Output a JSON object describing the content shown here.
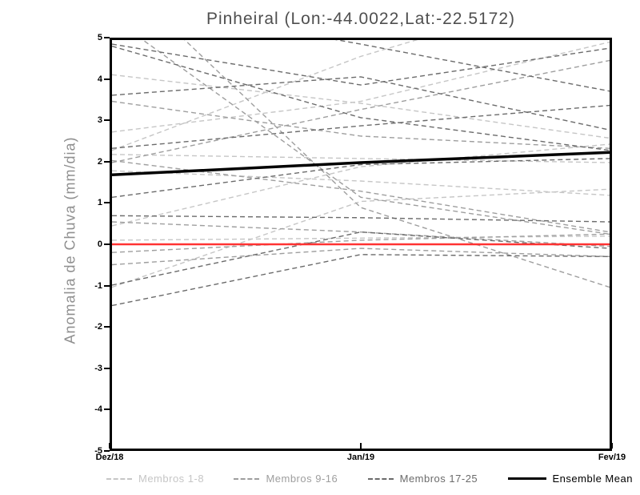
{
  "title": "Pinheiral (Lon:-44.0022,Lat:-22.5172)",
  "chart_data": {
    "type": "line",
    "x": [
      "Dez/18",
      "Jan/19",
      "Fev/19"
    ],
    "xlabel": "",
    "ylabel": "Anomalia de Chuva (mm/dia)",
    "ylim": [
      -5,
      5
    ],
    "yticks": [
      -5,
      -4,
      -3,
      -2,
      -1,
      0,
      1,
      2,
      3,
      4,
      5
    ],
    "grid": false,
    "legend_position": "bottom",
    "groups": [
      {
        "name": "Membros 1-8",
        "color": "#c6c6c6",
        "style": "dashed",
        "members": [
          [
            4.15,
            3.45,
            2.6
          ],
          [
            2.75,
            3.5,
            4.95
          ],
          [
            2.2,
            2.1,
            2.0
          ],
          [
            1.8,
            1.55,
            1.2
          ],
          [
            0.45,
            1.9,
            2.45
          ],
          [
            0.1,
            0.15,
            0.2
          ],
          [
            -1.05,
            1.05,
            1.35
          ],
          [
            2.3,
            4.6,
            6.4
          ]
        ]
      },
      {
        "name": "Membros 9-16",
        "color": "#9e9e9e",
        "style": "dashed",
        "members": [
          [
            6.7,
            0.9,
            -1.05
          ],
          [
            2.0,
            3.3,
            4.5
          ],
          [
            5.55,
            1.15,
            0.25
          ],
          [
            -0.2,
            0.1,
            0.25
          ],
          [
            -0.5,
            -0.1,
            -0.3
          ],
          [
            2.05,
            1.3,
            0.3
          ],
          [
            0.55,
            0.3,
            -0.05
          ],
          [
            3.5,
            2.65,
            2.35
          ]
        ]
      },
      {
        "name": "Membros 17-25",
        "color": "#6b6b6b",
        "style": "dashed",
        "members": [
          [
            3.65,
            4.1,
            2.8
          ],
          [
            4.9,
            3.9,
            4.8
          ],
          [
            4.85,
            3.1,
            2.3
          ],
          [
            2.35,
            2.9,
            3.4
          ],
          [
            6.0,
            4.9,
            3.75
          ],
          [
            1.15,
            1.95,
            2.1
          ],
          [
            0.7,
            0.65,
            0.55
          ],
          [
            -1.0,
            0.3,
            -0.1
          ],
          [
            -1.5,
            -0.25,
            -0.3
          ]
        ]
      }
    ],
    "zero_line": {
      "color": "#ff3232",
      "values": [
        0,
        0,
        0
      ]
    },
    "ensemble_mean": {
      "label": "Ensemble Mean",
      "color": "#000000",
      "values": [
        1.7,
        2.0,
        2.25
      ]
    }
  }
}
